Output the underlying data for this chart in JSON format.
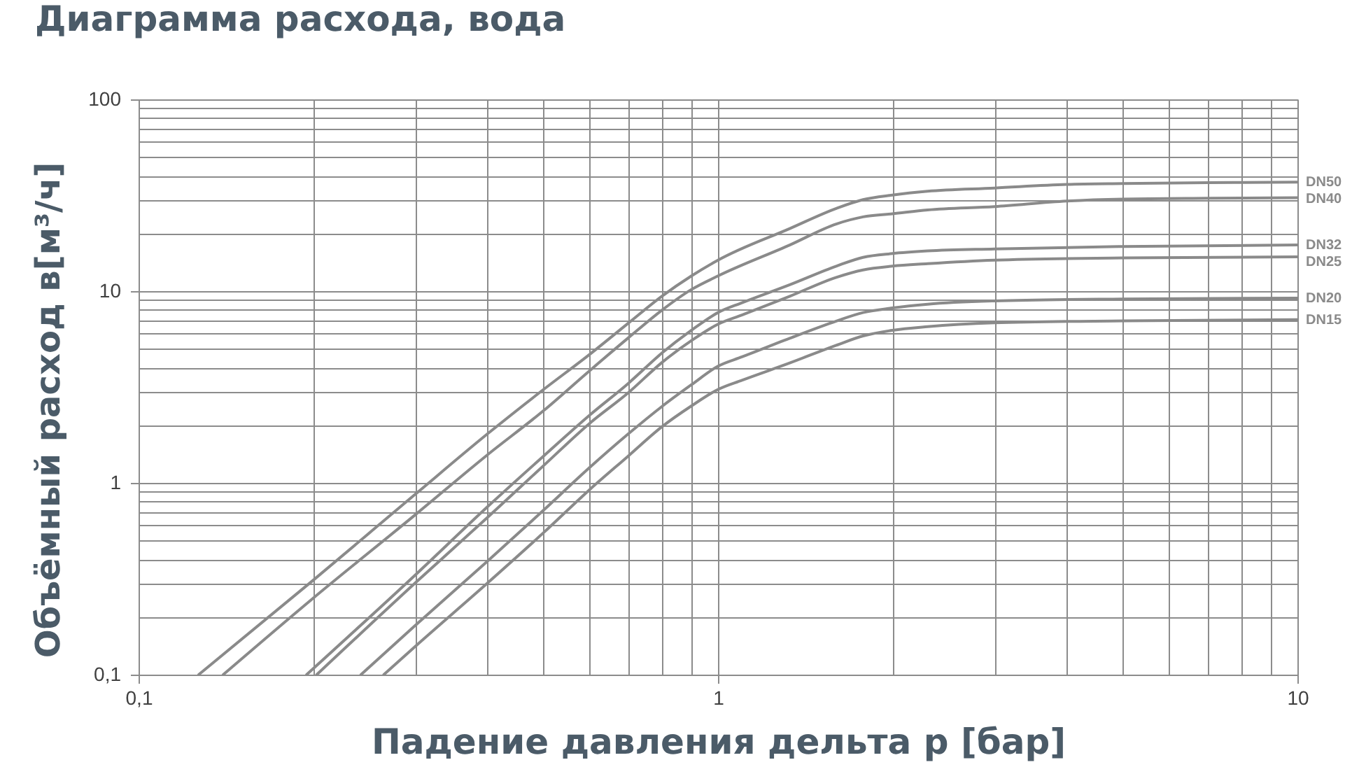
{
  "chart_data": {
    "type": "line",
    "title": "Диаграмма расхода, вода",
    "xlabel": "Падение давления дельта p [бар]",
    "ylabel": "Объёмный расход в[м³/ч]",
    "log": "xy",
    "grid": true,
    "xlim": [
      0.1,
      10
    ],
    "ylim": [
      0.1,
      100
    ],
    "xticks": [
      {
        "value": 0.1,
        "label": "0,1"
      },
      {
        "value": 0.2,
        "label": null
      },
      {
        "value": 0.3,
        "label": null
      },
      {
        "value": 0.4,
        "label": null
      },
      {
        "value": 0.5,
        "label": null
      },
      {
        "value": 0.6,
        "label": null
      },
      {
        "value": 0.7,
        "label": null
      },
      {
        "value": 0.8,
        "label": null
      },
      {
        "value": 0.9,
        "label": null
      },
      1,
      {
        "value": 2,
        "label": null
      },
      {
        "value": 3,
        "label": null
      },
      {
        "value": 4,
        "label": null
      },
      {
        "value": 5,
        "label": null
      },
      {
        "value": 6,
        "label": null
      },
      {
        "value": 7,
        "label": null
      },
      {
        "value": 8,
        "label": null
      },
      {
        "value": 9,
        "label": null
      },
      10
    ],
    "yticks": [
      {
        "value": 0.1,
        "label": "0,1"
      },
      {
        "value": 0.2,
        "label": null
      },
      {
        "value": 0.3,
        "label": null
      },
      {
        "value": 0.4,
        "label": null
      },
      {
        "value": 0.5,
        "label": null
      },
      {
        "value": 0.6,
        "label": null
      },
      {
        "value": 0.7,
        "label": null
      },
      {
        "value": 0.8,
        "label": null
      },
      {
        "value": 0.9,
        "label": null
      },
      1,
      {
        "value": 2,
        "label": null
      },
      {
        "value": 3,
        "label": null
      },
      {
        "value": 4,
        "label": null
      },
      {
        "value": 5,
        "label": null
      },
      {
        "value": 6,
        "label": null
      },
      {
        "value": 7,
        "label": null
      },
      {
        "value": 8,
        "label": null
      },
      {
        "value": 9,
        "label": null
      },
      10,
      {
        "value": 20,
        "label": null
      },
      {
        "value": 30,
        "label": null
      },
      {
        "value": 40,
        "label": null
      },
      {
        "value": 50,
        "label": null
      },
      {
        "value": 60,
        "label": null
      },
      {
        "value": 70,
        "label": null
      },
      {
        "value": 80,
        "label": null
      },
      {
        "value": 90,
        "label": null
      },
      100
    ],
    "series": [
      {
        "name": "DN50",
        "color": "#8a8a8a",
        "x": [
          0.127,
          0.2,
          0.3,
          0.4,
          0.5,
          0.6,
          0.7,
          0.8,
          0.9,
          1,
          1.33,
          1.6,
          1.78,
          2,
          2.3,
          3,
          4,
          5,
          7,
          10
        ],
        "values": [
          0.1,
          0.31,
          0.87,
          1.8,
          3.07,
          4.67,
          6.8,
          9.4,
          12.0,
          14.5,
          21.2,
          27.0,
          30.0,
          31.7,
          33.2,
          34.5,
          36.0,
          36.4,
          36.8,
          37
        ]
      },
      {
        "name": "DN40",
        "color": "#8a8a8a",
        "x": [
          0.14,
          0.2,
          0.3,
          0.4,
          0.5,
          0.6,
          0.7,
          0.8,
          0.9,
          1,
          1.33,
          1.6,
          1.78,
          2,
          2.3,
          3,
          4,
          5,
          7,
          10
        ],
        "values": [
          0.1,
          0.25,
          0.68,
          1.4,
          2.38,
          3.84,
          5.7,
          7.95,
          10.2,
          12.0,
          17.4,
          22.4,
          24.4,
          25.3,
          26.5,
          27.6,
          29.5,
          30.2,
          30.5,
          30.7
        ]
      },
      {
        "name": "DN32",
        "color": "#8a8a8a",
        "x": [
          0.195,
          0.3,
          0.4,
          0.5,
          0.6,
          0.7,
          0.8,
          0.9,
          1,
          1.1,
          1.33,
          1.6,
          1.78,
          2,
          2.3,
          3,
          5,
          10
        ],
        "values": [
          0.1,
          0.33,
          0.75,
          1.38,
          2.25,
          3.3,
          4.75,
          6.25,
          7.73,
          8.7,
          10.8,
          13.5,
          15.0,
          15.7,
          16.2,
          16.6,
          17.1,
          17.4
        ]
      },
      {
        "name": "DN25",
        "color": "#8a8a8a",
        "x": [
          0.203,
          0.3,
          0.4,
          0.5,
          0.6,
          0.7,
          0.8,
          0.9,
          1,
          1.1,
          1.33,
          1.6,
          1.78,
          2,
          2.3,
          3,
          5,
          10
        ],
        "values": [
          0.1,
          0.3,
          0.66,
          1.23,
          2.04,
          2.95,
          4.24,
          5.52,
          6.72,
          7.5,
          9.4,
          11.8,
          12.9,
          13.5,
          13.9,
          14.5,
          14.9,
          15.1
        ]
      },
      {
        "name": "DN20",
        "color": "#8a8a8a",
        "x": [
          0.242,
          0.3,
          0.4,
          0.5,
          0.6,
          0.7,
          0.8,
          0.9,
          1,
          1.1,
          1.33,
          1.6,
          1.78,
          2,
          2.3,
          3,
          5,
          10
        ],
        "values": [
          0.1,
          0.18,
          0.39,
          0.72,
          1.2,
          1.8,
          2.5,
          3.25,
          4.06,
          4.54,
          5.68,
          6.98,
          7.73,
          8.17,
          8.55,
          8.89,
          9.1,
          9.2
        ]
      },
      {
        "name": "DN15",
        "color": "#8a8a8a",
        "x": [
          0.265,
          0.3,
          0.4,
          0.5,
          0.6,
          0.7,
          0.8,
          0.9,
          1,
          1.1,
          1.33,
          1.6,
          1.78,
          2,
          2.3,
          3,
          5,
          10
        ],
        "values": [
          0.1,
          0.14,
          0.3,
          0.55,
          0.92,
          1.38,
          1.96,
          2.52,
          3.07,
          3.43,
          4.22,
          5.22,
          5.84,
          6.25,
          6.53,
          6.83,
          7.0,
          7.1
        ]
      }
    ]
  }
}
